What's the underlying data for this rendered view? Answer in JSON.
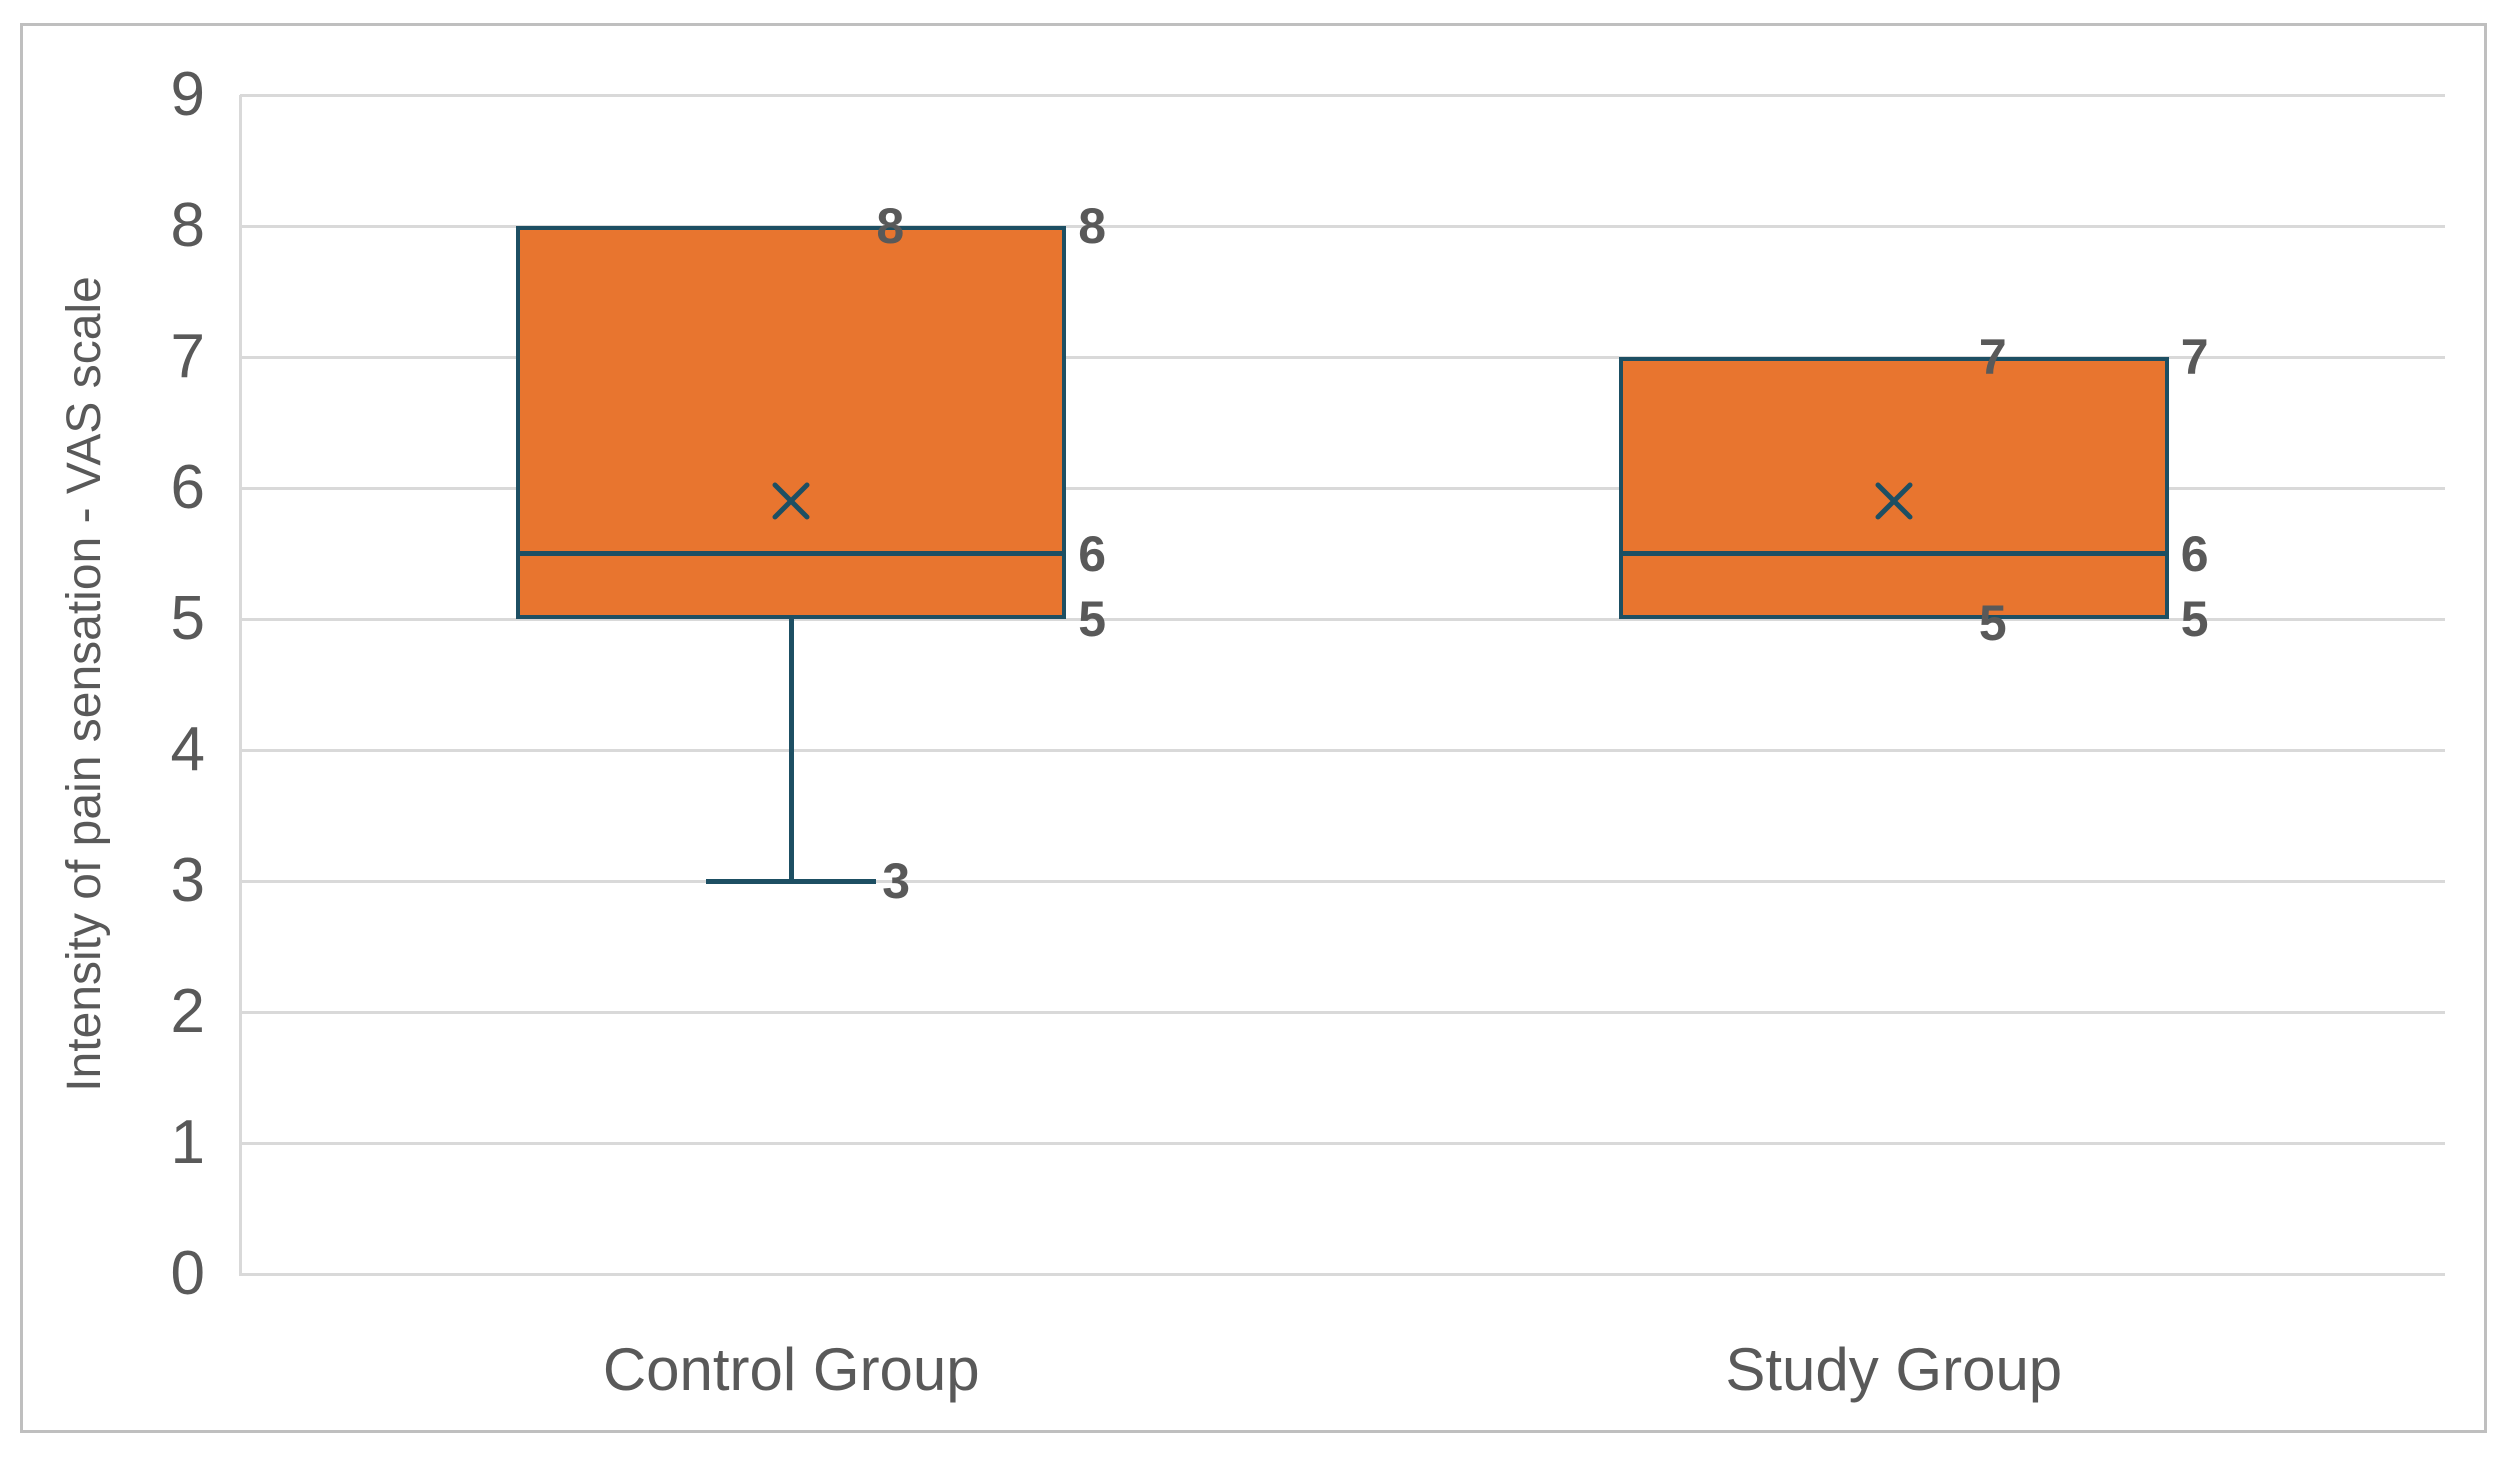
{
  "figure": {
    "background_color": "#FFFFFF",
    "border_color": "#BFBFBF"
  },
  "chart_data": {
    "type": "boxplot",
    "title": "",
    "xlabel": "",
    "ylabel": "Intensity of pain sensation - VAS scale",
    "ylim": [
      0,
      9
    ],
    "yticks": [
      0,
      1,
      2,
      3,
      4,
      5,
      6,
      7,
      8,
      9
    ],
    "grid": true,
    "legend": false,
    "categories": [
      "Control Group",
      "Study Group"
    ],
    "series": [
      {
        "name": "Control Group",
        "min": 3,
        "q1": 5,
        "median": 5.5,
        "q3": 8,
        "max": 8,
        "mean": 5.9,
        "data_labels": [
          {
            "text": "8",
            "value": 8,
            "placement": "inside-top"
          },
          {
            "text": "8",
            "value": 8,
            "placement": "outside-right"
          },
          {
            "text": "6",
            "value": 5.5,
            "placement": "outside-right"
          },
          {
            "text": "5",
            "value": 5,
            "placement": "outside-right"
          },
          {
            "text": "3",
            "value": 3,
            "placement": "whisker-end"
          }
        ]
      },
      {
        "name": "Study Group",
        "min": 5,
        "q1": 5,
        "median": 5.5,
        "q3": 7,
        "max": 7,
        "mean": 5.9,
        "data_labels": [
          {
            "text": "7",
            "value": 7,
            "placement": "inside-top"
          },
          {
            "text": "7",
            "value": 7,
            "placement": "outside-right"
          },
          {
            "text": "6",
            "value": 5.5,
            "placement": "outside-right"
          },
          {
            "text": "5",
            "value": 5,
            "placement": "inside-bottom"
          },
          {
            "text": "5",
            "value": 5,
            "placement": "outside-right"
          }
        ]
      }
    ],
    "colors": {
      "box_fill": "#E8752F",
      "box_border": "#1D4F63",
      "whisker": "#1D4F63",
      "median": "#1D4F63",
      "mean_marker": "#1D4F63",
      "gridline": "#D9D9D9",
      "axis_line": "#D9D9D9",
      "axis_text": "#595959",
      "data_label": "#595959"
    }
  }
}
